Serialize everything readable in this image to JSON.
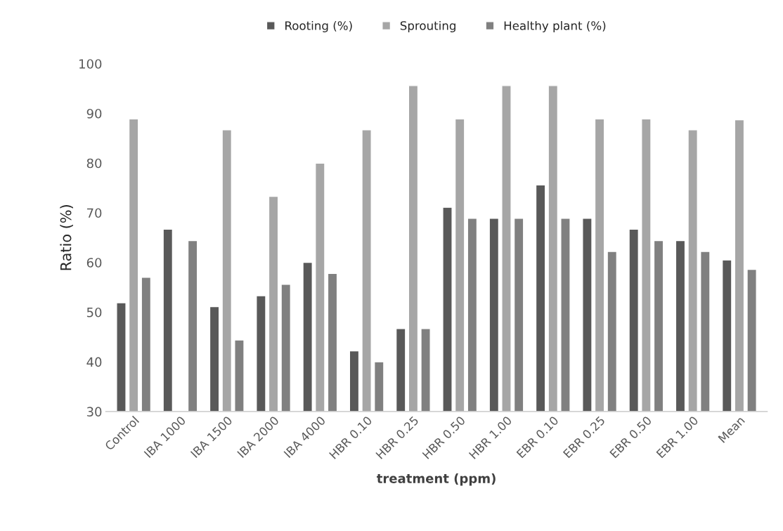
{
  "chart_data": {
    "type": "bar",
    "xlabel": "treatment (ppm)",
    "ylabel": "Ratio (%)",
    "categories": [
      "Control",
      "IBA 1000",
      "IBA 1500",
      "IBA 2000",
      "IBA 4000",
      "HBR 0.10",
      "HBR 0.25",
      "HBR 0.50",
      "HBR 1.00",
      "EBR 0.10",
      "EBR 0.25",
      "EBR 0.50",
      "EBR 1.00",
      "Mean"
    ],
    "series": [
      {
        "name": "Rooting (%)",
        "color": "#595959",
        "values": [
          51.9,
          66.7,
          51.1,
          53.3,
          60.0,
          42.2,
          46.7,
          71.1,
          68.9,
          75.6,
          68.9,
          66.7,
          64.4,
          60.5
        ]
      },
      {
        "name": "Sprouting",
        "color": "#a6a6a6",
        "values": [
          88.9,
          null,
          86.7,
          73.3,
          80.0,
          86.7,
          95.6,
          88.9,
          95.6,
          95.6,
          88.9,
          88.9,
          86.7,
          88.7
        ]
      },
      {
        "name": "Healthy plant (%)",
        "color": "#808080",
        "values": [
          57.0,
          64.4,
          44.4,
          55.6,
          57.8,
          40.0,
          46.7,
          68.9,
          68.9,
          68.9,
          62.2,
          64.4,
          62.2,
          58.6
        ]
      }
    ],
    "ylim": [
      30,
      100
    ],
    "yticks": [
      30,
      40,
      50,
      60,
      70,
      80,
      90,
      100
    ],
    "grid": false,
    "legend": "top"
  }
}
